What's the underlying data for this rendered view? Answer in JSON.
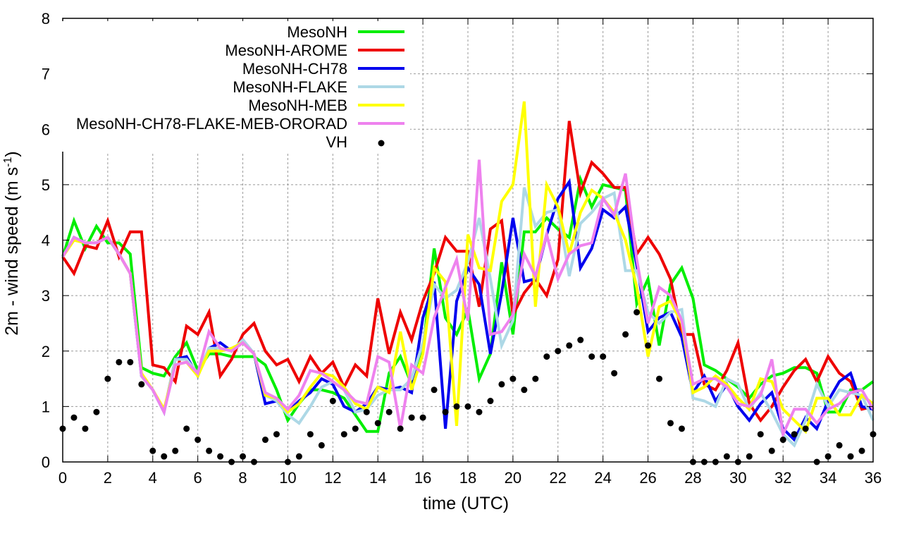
{
  "chart_data": {
    "type": "line",
    "title": "",
    "xlabel": "time (UTC)",
    "ylabel": "2m - wind speed  (m s",
    "ylabel_sup": "-1",
    "ylabel_end": ")",
    "xlim": [
      0,
      36
    ],
    "ylim": [
      0,
      8
    ],
    "xticks": [
      "0",
      "2",
      "4",
      "6",
      "8",
      "10",
      "12",
      "14",
      "16",
      "18",
      "20",
      "22",
      "24",
      "26",
      "28",
      "30",
      "32",
      "34",
      "36"
    ],
    "yticks": [
      "0",
      "1",
      "2",
      "3",
      "4",
      "5",
      "6",
      "7",
      "8"
    ],
    "grid": true,
    "legend_position": "top-right",
    "x": [
      0,
      0.5,
      1,
      1.5,
      2,
      2.5,
      3,
      3.5,
      4,
      4.5,
      5,
      5.5,
      6,
      6.5,
      7,
      7.5,
      8,
      8.5,
      9,
      9.5,
      10,
      10.5,
      11,
      11.5,
      12,
      12.5,
      13,
      13.5,
      14,
      14.5,
      15,
      15.5,
      16,
      16.5,
      17,
      17.5,
      18,
      18.5,
      19,
      19.5,
      20,
      20.5,
      21,
      21.5,
      22,
      22.5,
      23,
      23.5,
      24,
      24.5,
      25,
      25.5,
      26,
      26.5,
      27,
      27.5,
      28,
      28.5,
      29,
      29.5,
      30,
      30.5,
      31,
      31.5,
      32,
      32.5,
      33,
      33.5,
      34,
      34.5,
      35,
      35.5,
      36
    ],
    "series": [
      {
        "name": "MesoNH",
        "color": "#00ee00",
        "style": "line",
        "values": [
          3.7,
          4.35,
          3.85,
          4.25,
          3.95,
          3.95,
          3.75,
          1.7,
          1.6,
          1.55,
          1.9,
          2.15,
          1.65,
          1.95,
          1.95,
          1.9,
          1.9,
          1.9,
          1.75,
          1.3,
          0.75,
          1.05,
          1.3,
          1.3,
          1.25,
          1.15,
          0.85,
          0.55,
          0.55,
          1.6,
          1.9,
          1.4,
          2.0,
          3.85,
          2.6,
          2.3,
          2.75,
          1.5,
          1.95,
          3.6,
          2.3,
          4.15,
          4.15,
          4.4,
          4.2,
          4.05,
          5.1,
          4.6,
          5.0,
          4.95,
          4.9,
          2.85,
          3.3,
          2.1,
          3.2,
          3.5,
          2.95,
          1.75,
          1.65,
          1.5,
          1.35,
          1.15,
          1.4,
          1.55,
          1.6,
          1.7,
          1.7,
          1.6,
          0.9,
          0.9,
          1.3,
          1.3,
          1.45
        ]
      },
      {
        "name": "MesoNH-AROME",
        "color": "#ee0000",
        "style": "line",
        "values": [
          3.7,
          3.4,
          3.9,
          3.85,
          4.35,
          3.7,
          4.15,
          4.15,
          1.75,
          1.7,
          1.45,
          2.45,
          2.3,
          2.7,
          1.55,
          1.85,
          2.3,
          2.5,
          2.0,
          1.75,
          1.85,
          1.45,
          1.9,
          1.6,
          1.8,
          1.35,
          1.75,
          1.55,
          2.95,
          1.95,
          2.7,
          2.2,
          2.9,
          3.4,
          4.05,
          3.8,
          3.8,
          2.8,
          4.2,
          4.35,
          2.65,
          3.05,
          3.3,
          3.0,
          3.65,
          6.15,
          4.85,
          5.4,
          5.2,
          4.95,
          4.95,
          3.75,
          4.05,
          3.75,
          3.3,
          2.3,
          2.3,
          1.4,
          1.3,
          1.65,
          2.15,
          1.05,
          0.75,
          1.0,
          1.35,
          1.65,
          1.85,
          1.45,
          1.9,
          1.6,
          1.45,
          0.95,
          1.0
        ]
      },
      {
        "name": "MesoNH-CH78",
        "color": "#0000ee",
        "style": "line",
        "values": [
          3.7,
          4.05,
          3.95,
          3.95,
          4.05,
          3.75,
          3.4,
          1.55,
          1.3,
          0.9,
          1.85,
          1.9,
          1.55,
          2.05,
          2.15,
          2.0,
          2.2,
          1.95,
          1.05,
          1.1,
          0.9,
          1.1,
          1.25,
          1.5,
          1.4,
          1.0,
          0.9,
          1.05,
          1.35,
          1.3,
          1.35,
          1.25,
          2.6,
          3.25,
          0.6,
          2.9,
          3.5,
          3.2,
          1.95,
          3.05,
          4.4,
          3.25,
          3.3,
          4.1,
          4.75,
          5.05,
          3.5,
          3.85,
          4.55,
          4.4,
          4.6,
          3.55,
          2.35,
          2.6,
          2.7,
          2.25,
          1.25,
          1.55,
          1.1,
          1.4,
          1.0,
          0.75,
          1.05,
          1.25,
          0.6,
          0.4,
          0.8,
          0.6,
          1.1,
          1.45,
          1.6,
          1.0,
          0.95
        ]
      },
      {
        "name": "MesoNH-FLAKE",
        "color": "#add8e6",
        "style": "line",
        "values": [
          3.7,
          4.05,
          3.95,
          3.95,
          4.05,
          3.75,
          3.4,
          1.55,
          1.3,
          0.9,
          1.85,
          1.85,
          1.6,
          2.05,
          2.05,
          2.0,
          2.2,
          1.95,
          1.2,
          1.1,
          0.85,
          0.7,
          1.0,
          1.35,
          1.45,
          1.3,
          0.9,
          0.95,
          1.2,
          1.3,
          1.3,
          1.5,
          2.15,
          3.2,
          2.95,
          3.1,
          3.6,
          4.4,
          3.3,
          2.1,
          2.55,
          4.95,
          4.25,
          4.5,
          4.55,
          3.35,
          4.3,
          4.5,
          4.75,
          4.85,
          3.45,
          3.45,
          2.7,
          2.5,
          2.7,
          2.75,
          1.15,
          1.1,
          1.0,
          1.5,
          1.4,
          0.95,
          1.25,
          0.9,
          0.5,
          0.3,
          0.75,
          1.4,
          1.0,
          1.3,
          1.25,
          1.2,
          0.75
        ]
      },
      {
        "name": "MesoNH-MEB",
        "color": "#ffff00",
        "style": "line",
        "values": [
          3.7,
          4.0,
          3.95,
          3.95,
          4.05,
          3.75,
          3.4,
          1.6,
          1.3,
          0.95,
          1.75,
          1.8,
          1.55,
          2.0,
          2.0,
          2.05,
          2.15,
          1.95,
          1.2,
          1.15,
          0.9,
          1.05,
          1.35,
          1.6,
          1.55,
          1.35,
          1.05,
          0.95,
          1.35,
          1.25,
          2.35,
          1.3,
          1.95,
          3.5,
          3.25,
          0.65,
          4.1,
          3.5,
          3.45,
          4.7,
          5.0,
          6.5,
          2.8,
          5.0,
          4.6,
          3.75,
          4.5,
          4.9,
          4.75,
          4.5,
          4.0,
          3.15,
          1.9,
          2.8,
          2.9,
          2.5,
          1.25,
          1.35,
          1.55,
          1.4,
          1.15,
          0.95,
          1.5,
          1.45,
          0.95,
          0.75,
          0.55,
          1.15,
          1.15,
          0.85,
          0.85,
          1.2,
          1.05
        ]
      },
      {
        "name": "MesoNH-CH78-FLAKE-MEB-ORORAD",
        "color": "#ee82ee",
        "style": "line",
        "values": [
          3.7,
          4.05,
          3.95,
          3.95,
          4.05,
          3.75,
          3.4,
          1.55,
          1.3,
          0.9,
          1.75,
          1.8,
          1.6,
          2.35,
          2.05,
          2.0,
          2.15,
          1.95,
          1.25,
          1.15,
          0.95,
          1.2,
          1.65,
          1.6,
          1.45,
          1.3,
          1.1,
          1.05,
          1.9,
          1.8,
          0.6,
          1.75,
          1.6,
          2.6,
          3.15,
          3.65,
          2.55,
          5.45,
          2.3,
          2.35,
          2.65,
          3.75,
          3.35,
          4.1,
          3.3,
          3.75,
          3.9,
          3.95,
          4.75,
          4.45,
          5.2,
          3.65,
          2.5,
          3.15,
          3.0,
          2.55,
          1.4,
          1.5,
          1.5,
          1.35,
          1.05,
          1.0,
          1.2,
          1.85,
          0.5,
          0.95,
          0.95,
          0.7,
          0.95,
          1.05,
          1.25,
          1.3,
          0.95
        ]
      },
      {
        "name": "VH",
        "color": "#000000",
        "style": "points",
        "values": [
          0.6,
          0.8,
          0.6,
          0.9,
          1.5,
          1.8,
          1.8,
          1.4,
          0.2,
          0.1,
          0.2,
          0.6,
          0.4,
          0.2,
          0.1,
          0.0,
          0.1,
          0.0,
          0.4,
          0.5,
          0.0,
          0.1,
          0.5,
          0.3,
          1.1,
          0.5,
          0.6,
          0.9,
          0.7,
          0.9,
          0.6,
          0.8,
          0.8,
          1.3,
          0.9,
          1.0,
          1.0,
          0.9,
          1.1,
          1.4,
          1.5,
          1.3,
          1.5,
          1.9,
          2.0,
          2.1,
          2.2,
          1.9,
          1.9,
          1.6,
          2.3,
          2.7,
          2.1,
          1.5,
          0.7,
          0.6,
          0.0,
          0.0,
          0.0,
          0.1,
          0.0,
          0.1,
          0.5,
          0.2,
          0.4,
          0.5,
          0.6,
          0.0,
          0.1,
          0.3,
          0.1,
          0.2,
          0.5
        ]
      }
    ]
  }
}
